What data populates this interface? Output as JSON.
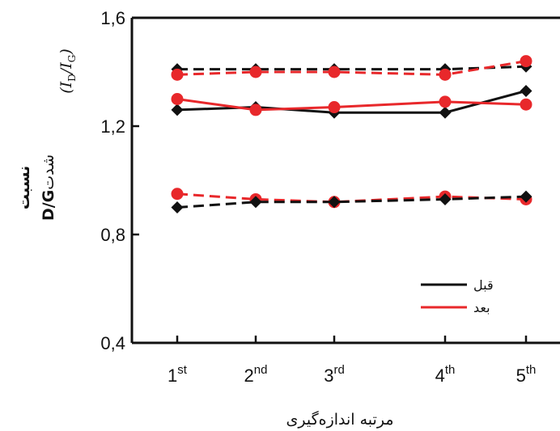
{
  "chart_data": {
    "type": "line",
    "categories": [
      "1",
      "2",
      "3",
      "4",
      "5"
    ],
    "category_suffixes": [
      "st",
      "nd",
      "rd",
      "th",
      "th"
    ],
    "xlabel": "مرتبه اندازه‌گیری",
    "ylabel_line1": "نسبت",
    "ylabel_line2_main": "D/G",
    "ylabel_line2_sub": "شدت",
    "ratio_label": {
      "open": "(",
      "i": "I",
      "d": "D",
      "slash": "/",
      "g": "G",
      "close": ")"
    },
    "ylim": [
      0.4,
      1.6
    ],
    "yticks": [
      "0,4",
      "0,8",
      "1,2",
      "1,6"
    ],
    "ytick_values": [
      0.4,
      0.8,
      1.2,
      1.6
    ],
    "legend": {
      "position": "right",
      "entries": [
        "قبل",
        "بعد"
      ]
    },
    "colors": {
      "before": "#111111",
      "after": "#e8282b"
    },
    "series": [
      {
        "group": "before",
        "style": "dashed",
        "marker": "diamond",
        "values": [
          1.41,
          1.41,
          1.41,
          1.41,
          1.42
        ]
      },
      {
        "group": "after",
        "style": "dashed",
        "marker": "circle",
        "values": [
          1.39,
          1.4,
          1.4,
          1.39,
          1.44
        ]
      },
      {
        "group": "before",
        "style": "solid",
        "marker": "diamond",
        "values": [
          1.26,
          1.27,
          1.25,
          1.25,
          1.33
        ]
      },
      {
        "group": "after",
        "style": "solid",
        "marker": "circle",
        "values": [
          1.3,
          1.26,
          1.27,
          1.29,
          1.28
        ]
      },
      {
        "group": "after",
        "style": "dashed",
        "marker": "circle",
        "values": [
          0.95,
          0.93,
          0.92,
          0.94,
          0.93
        ]
      },
      {
        "group": "before",
        "style": "dashed",
        "marker": "diamond",
        "values": [
          0.9,
          0.92,
          0.92,
          0.93,
          0.94
        ]
      }
    ]
  }
}
